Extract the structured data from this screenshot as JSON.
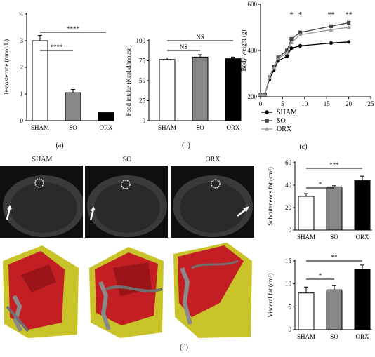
{
  "panels": {
    "a": "(a)",
    "b": "(b)",
    "c": "(c)",
    "d": "(d)"
  },
  "ct_labels": [
    "SHAM",
    "SO",
    "ORX"
  ],
  "colors": {
    "SHAM": "#ffffff",
    "SO": "#888888",
    "ORX": "#000000",
    "fat_red": "#c41e25",
    "fat_yellow": "#c9c32a",
    "bone": "#8a8a8a"
  },
  "chart_data": [
    {
      "id": "a",
      "type": "bar",
      "categories": [
        "SHAM",
        "SO",
        "ORX"
      ],
      "values": [
        3.0,
        1.05,
        0.3
      ],
      "errors": [
        0.2,
        0.12,
        0.0
      ],
      "ylabel": "Testosterone (nmol/L)",
      "ylim": [
        0,
        4
      ],
      "yticks": [
        "0",
        "1",
        "2",
        "3",
        "4"
      ],
      "annotations": [
        {
          "from": "SHAM",
          "to": "SO",
          "text": "****"
        },
        {
          "from": "SHAM",
          "to": "ORX",
          "text": "****"
        }
      ]
    },
    {
      "id": "b",
      "type": "bar",
      "categories": [
        "SHAM",
        "SO",
        "ORX"
      ],
      "values": [
        76.5,
        79.5,
        77.5
      ],
      "errors": [
        2.0,
        3.0,
        2.0
      ],
      "ylabel": "Food intake (Kcal/d/mouse)",
      "ylim": [
        0,
        100
      ],
      "yticks": [
        "0",
        "25",
        "50",
        "75",
        "100"
      ],
      "annotations": [
        {
          "from": "SHAM",
          "to": "SO",
          "text": "NS"
        },
        {
          "from": "SHAM",
          "to": "ORX",
          "text": "NS"
        }
      ]
    },
    {
      "id": "c",
      "type": "line",
      "x": [
        0,
        1,
        2,
        3,
        4,
        6,
        7,
        9,
        16,
        20
      ],
      "xticks": [
        "0",
        "5",
        "10",
        "15",
        "20",
        "25"
      ],
      "xlim": [
        0,
        25
      ],
      "ylabel": "Body weight (g)",
      "ylim": [
        200,
        600
      ],
      "yticks": [
        "200",
        "400",
        "600"
      ],
      "legend_position": "bottom-left",
      "series": [
        {
          "name": "SHAM",
          "marker": "circle",
          "values": [
            210,
            210,
            275,
            315,
            355,
            375,
            410,
            420,
            432,
            437
          ]
        },
        {
          "name": "SO",
          "marker": "square",
          "values": [
            210,
            210,
            285,
            330,
            370,
            400,
            450,
            478,
            505,
            520
          ]
        },
        {
          "name": "ORX",
          "marker": "triangle",
          "values": [
            210,
            210,
            285,
            325,
            365,
            390,
            435,
            468,
            490,
            500
          ]
        }
      ],
      "significance": [
        {
          "x": 7,
          "text": "*"
        },
        {
          "x": 9,
          "text": "*"
        },
        {
          "x": 16,
          "text": "**"
        },
        {
          "x": 20,
          "text": "**"
        }
      ]
    },
    {
      "id": "d1",
      "type": "bar",
      "categories": [
        "SHAM",
        "SO",
        "ORX"
      ],
      "values": [
        30,
        38.5,
        44
      ],
      "errors": [
        2.5,
        1.0,
        4.0
      ],
      "ylabel": "Subcutaneous fat (cm³)",
      "ylim": [
        0,
        60
      ],
      "yticks": [
        "0",
        "20",
        "40",
        "60"
      ],
      "annotations": [
        {
          "from": "SHAM",
          "to": "SO",
          "text": "*"
        },
        {
          "from": "SHAM",
          "to": "ORX",
          "text": "***"
        }
      ]
    },
    {
      "id": "d2",
      "type": "bar",
      "categories": [
        "SHAM",
        "SO",
        "ORX"
      ],
      "values": [
        8.0,
        8.7,
        13.2
      ],
      "errors": [
        1.3,
        0.9,
        0.9
      ],
      "ylabel": "Visceral fat (cm³)",
      "ylim": [
        0,
        15
      ],
      "yticks": [
        "0",
        "5",
        "10",
        "15"
      ],
      "annotations": [
        {
          "from": "SHAM",
          "to": "SO",
          "text": "*"
        },
        {
          "from": "SHAM",
          "to": "ORX",
          "text": "**"
        }
      ]
    }
  ]
}
